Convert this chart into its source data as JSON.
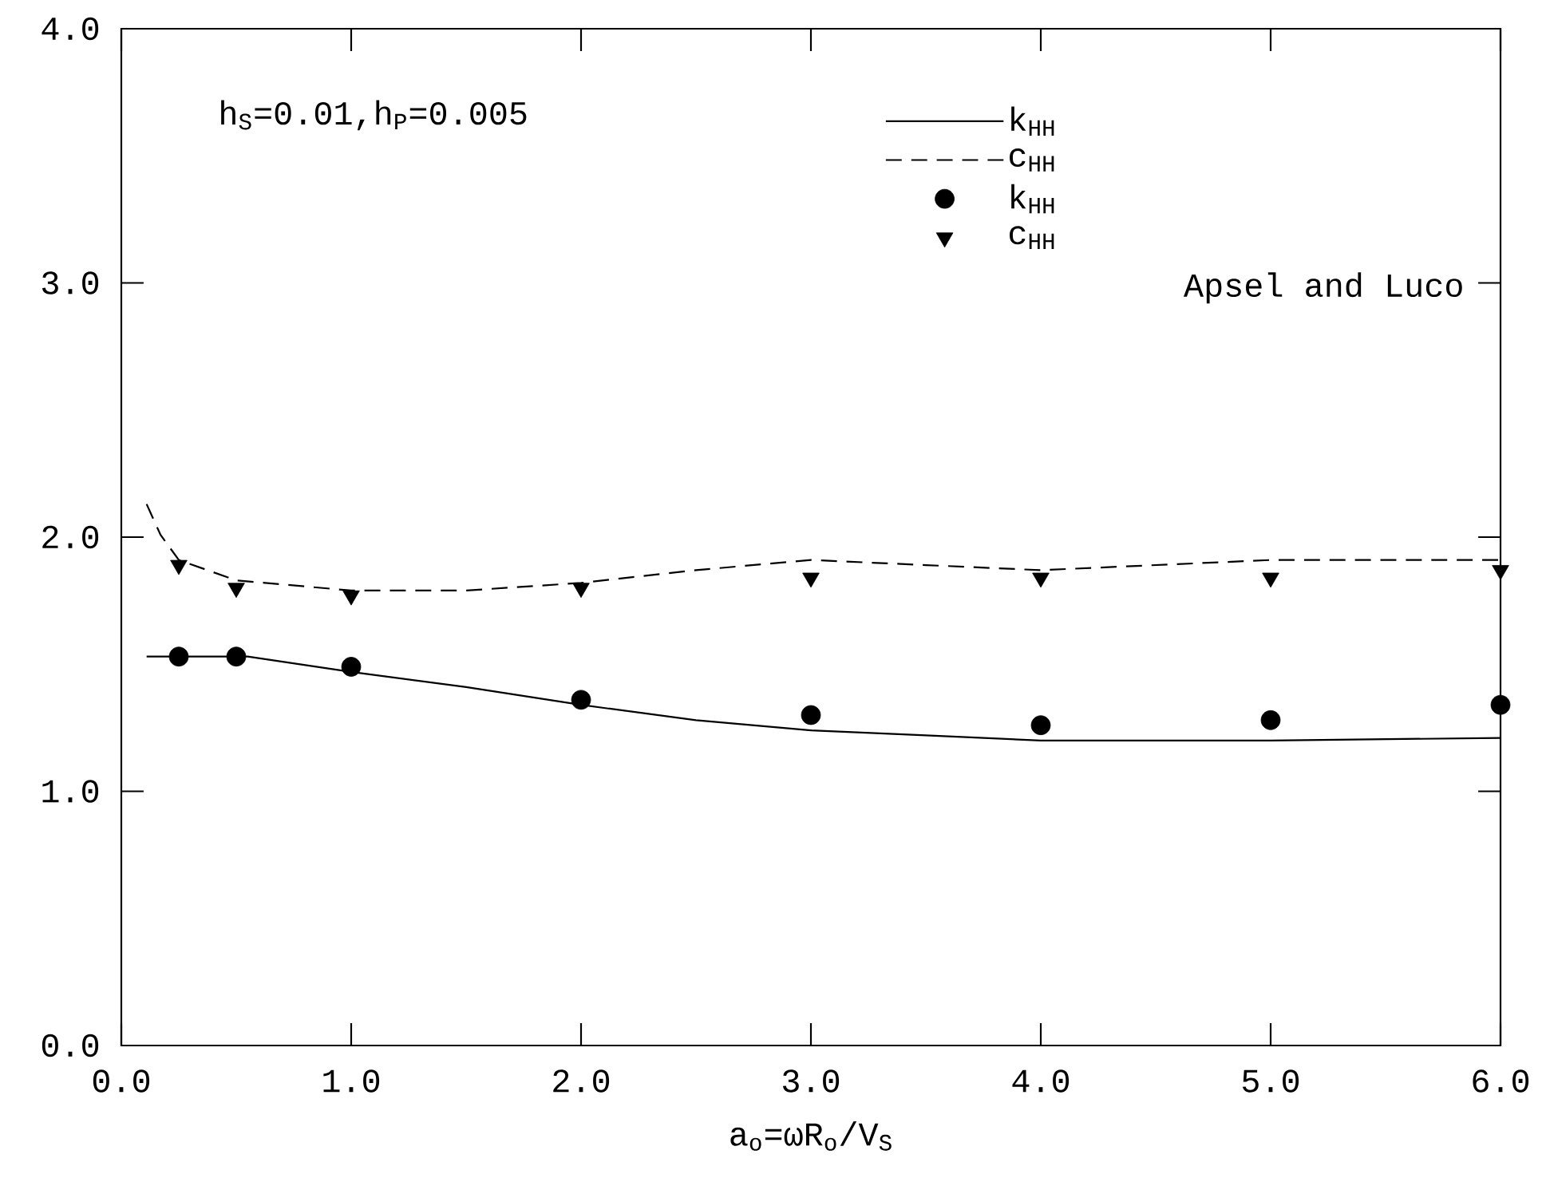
{
  "chart_data": {
    "type": "line",
    "xlabel": "a$_{o}$=ωR$_{o}$/V$_{S}$",
    "xlim": [
      0,
      6
    ],
    "ylim": [
      0,
      4
    ],
    "xticks": [
      {
        "value": 0,
        "label": "0.0"
      },
      {
        "value": 1,
        "label": "1.0"
      },
      {
        "value": 2,
        "label": "2.0"
      },
      {
        "value": 3,
        "label": "3.0"
      },
      {
        "value": 4,
        "label": "4.0"
      },
      {
        "value": 5,
        "label": "5.0"
      },
      {
        "value": 6,
        "label": "6.0"
      }
    ],
    "yticks": [
      {
        "value": 0,
        "label": "0.0"
      },
      {
        "value": 1,
        "label": "1.0"
      },
      {
        "value": 2,
        "label": "2.0"
      },
      {
        "value": 3,
        "label": "3.0"
      },
      {
        "value": 4,
        "label": "4.0"
      }
    ],
    "grid": false,
    "legend": "top right",
    "annotations": [
      "h$_{S}$=0.01,h$_{P}$=0.005",
      "Apsel and Luco"
    ],
    "series": [
      {
        "name": "k$_{HH}$",
        "line_style": "solid",
        "marker": "none",
        "color": "#000000",
        "x": [
          0.11,
          0.3,
          0.55,
          1,
          1.5,
          2,
          2.5,
          3,
          3.5,
          4,
          5,
          6
        ],
        "values": [
          1.53,
          1.53,
          1.53,
          1.47,
          1.41,
          1.34,
          1.28,
          1.24,
          1.22,
          1.2,
          1.2,
          1.21
        ]
      },
      {
        "name": "c$_{HH}$",
        "line_style": "dashed",
        "marker": "none",
        "color": "#000000",
        "x": [
          0.11,
          0.17,
          0.25,
          0.5,
          1,
          1.5,
          2,
          2.5,
          3,
          3.5,
          4,
          5,
          6
        ],
        "values": [
          2.13,
          2.01,
          1.91,
          1.83,
          1.79,
          1.79,
          1.82,
          1.87,
          1.91,
          1.89,
          1.87,
          1.91,
          1.91
        ]
      },
      {
        "name": "k$_{HH}$",
        "type": "scatter",
        "marker": "circle",
        "color": "#000000",
        "x": [
          0.25,
          0.5,
          1,
          2,
          3,
          4,
          5,
          6
        ],
        "values": [
          1.53,
          1.53,
          1.49,
          1.36,
          1.3,
          1.26,
          1.28,
          1.34
        ]
      },
      {
        "name": "c$_{HH}$",
        "type": "scatter",
        "marker": "triangle",
        "color": "#000000",
        "x": [
          0.25,
          0.5,
          1,
          2,
          3,
          4,
          5,
          6
        ],
        "values": [
          1.89,
          1.8,
          1.77,
          1.8,
          1.84,
          1.84,
          1.84,
          1.87
        ]
      }
    ]
  }
}
